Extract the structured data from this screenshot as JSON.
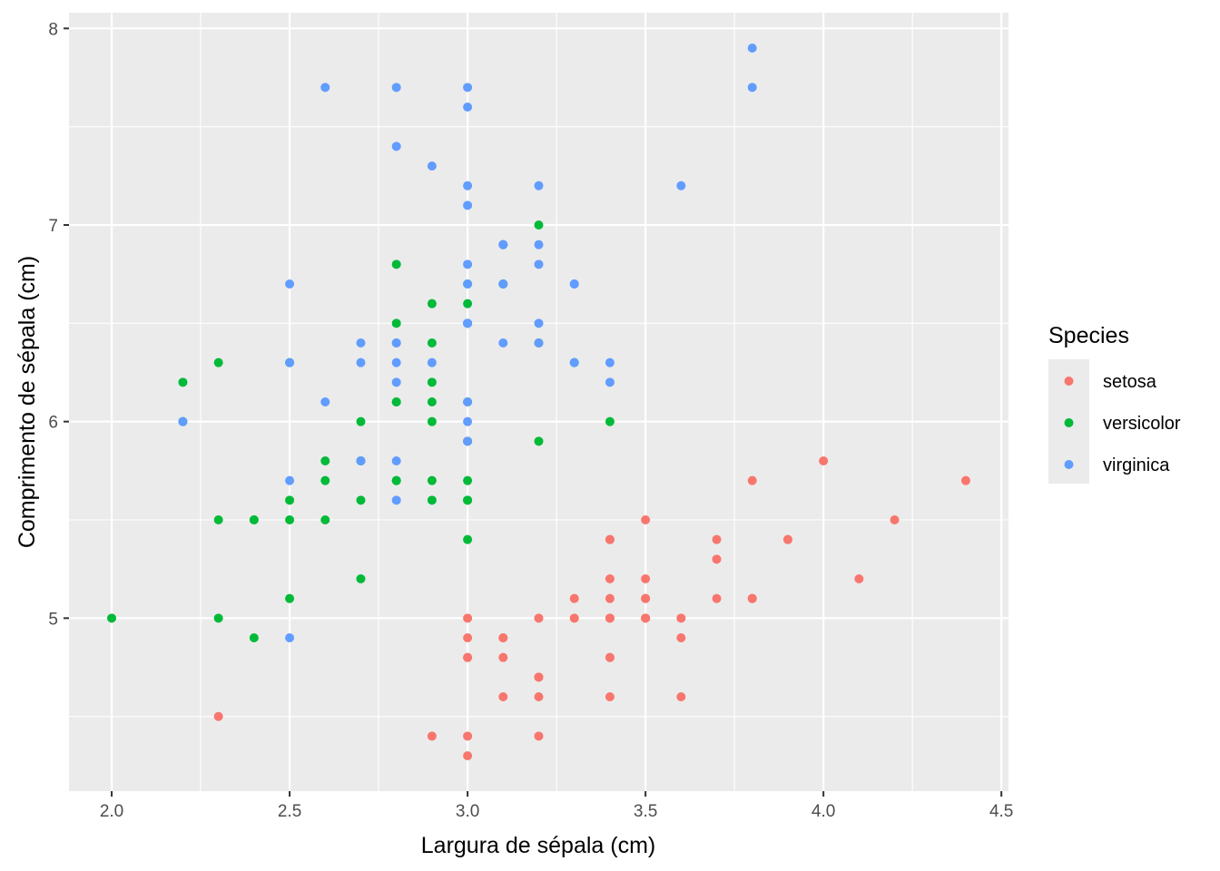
{
  "chart_data": {
    "type": "scatter",
    "xlabel": "Largura de sépala (cm)",
    "ylabel": "Comprimento de sépala (cm)",
    "xlim": [
      1.88,
      4.52
    ],
    "ylim": [
      4.12,
      8.08
    ],
    "x_ticks": [
      2.0,
      2.5,
      3.0,
      3.5,
      4.0,
      4.5
    ],
    "x_tick_labels": [
      "2.0",
      "2.5",
      "3.0",
      "3.5",
      "4.0",
      "4.5"
    ],
    "y_ticks": [
      5,
      6,
      7,
      8
    ],
    "y_tick_labels": [
      "5",
      "6",
      "7",
      "8"
    ],
    "grid": true,
    "legend": {
      "title": "Species",
      "position": "right"
    },
    "series": [
      {
        "name": "setosa",
        "color": "#F8766D",
        "points": [
          [
            3.5,
            5.1
          ],
          [
            3.0,
            4.9
          ],
          [
            3.2,
            4.7
          ],
          [
            3.1,
            4.6
          ],
          [
            3.6,
            5.0
          ],
          [
            3.9,
            5.4
          ],
          [
            3.4,
            4.6
          ],
          [
            3.4,
            5.0
          ],
          [
            2.9,
            4.4
          ],
          [
            3.1,
            4.9
          ],
          [
            3.7,
            5.4
          ],
          [
            3.4,
            4.8
          ],
          [
            3.0,
            4.8
          ],
          [
            3.0,
            4.3
          ],
          [
            4.0,
            5.8
          ],
          [
            4.4,
            5.7
          ],
          [
            3.9,
            5.4
          ],
          [
            3.5,
            5.1
          ],
          [
            3.8,
            5.7
          ],
          [
            3.8,
            5.1
          ],
          [
            3.4,
            5.4
          ],
          [
            3.7,
            5.1
          ],
          [
            3.6,
            4.6
          ],
          [
            3.3,
            5.1
          ],
          [
            3.4,
            4.8
          ],
          [
            3.0,
            5.0
          ],
          [
            3.4,
            5.0
          ],
          [
            3.5,
            5.2
          ],
          [
            3.4,
            5.2
          ],
          [
            3.2,
            4.7
          ],
          [
            3.1,
            4.8
          ],
          [
            3.4,
            5.4
          ],
          [
            4.1,
            5.2
          ],
          [
            4.2,
            5.5
          ],
          [
            3.1,
            4.9
          ],
          [
            3.2,
            5.0
          ],
          [
            3.5,
            5.5
          ],
          [
            3.6,
            4.9
          ],
          [
            3.0,
            4.4
          ],
          [
            3.4,
            5.1
          ],
          [
            3.5,
            5.0
          ],
          [
            2.3,
            4.5
          ],
          [
            3.2,
            4.4
          ],
          [
            3.5,
            5.0
          ],
          [
            3.8,
            5.1
          ],
          [
            3.0,
            4.8
          ],
          [
            3.8,
            5.1
          ],
          [
            3.2,
            4.6
          ],
          [
            3.7,
            5.3
          ],
          [
            3.3,
            5.0
          ]
        ]
      },
      {
        "name": "versicolor",
        "color": "#00BA38",
        "points": [
          [
            3.2,
            7.0
          ],
          [
            3.2,
            6.4
          ],
          [
            3.1,
            6.9
          ],
          [
            2.3,
            5.5
          ],
          [
            2.8,
            6.5
          ],
          [
            2.8,
            5.7
          ],
          [
            3.3,
            6.3
          ],
          [
            2.4,
            4.9
          ],
          [
            2.9,
            6.6
          ],
          [
            2.7,
            5.2
          ],
          [
            2.0,
            5.0
          ],
          [
            3.0,
            5.9
          ],
          [
            2.2,
            6.0
          ],
          [
            2.9,
            6.1
          ],
          [
            2.9,
            5.6
          ],
          [
            3.1,
            6.7
          ],
          [
            3.0,
            5.6
          ],
          [
            2.7,
            5.8
          ],
          [
            2.2,
            6.2
          ],
          [
            2.5,
            5.6
          ],
          [
            3.2,
            5.9
          ],
          [
            2.8,
            6.1
          ],
          [
            2.5,
            6.3
          ],
          [
            2.8,
            6.1
          ],
          [
            2.9,
            6.4
          ],
          [
            3.0,
            6.6
          ],
          [
            2.8,
            6.8
          ],
          [
            3.0,
            6.7
          ],
          [
            2.9,
            6.0
          ],
          [
            2.6,
            5.7
          ],
          [
            2.4,
            5.5
          ],
          [
            2.4,
            5.5
          ],
          [
            2.7,
            5.8
          ],
          [
            2.7,
            6.0
          ],
          [
            3.0,
            5.4
          ],
          [
            3.4,
            6.0
          ],
          [
            3.1,
            6.7
          ],
          [
            2.3,
            6.3
          ],
          [
            3.0,
            5.6
          ],
          [
            2.5,
            5.5
          ],
          [
            2.6,
            5.5
          ],
          [
            3.0,
            6.1
          ],
          [
            2.6,
            5.8
          ],
          [
            2.3,
            5.0
          ],
          [
            2.7,
            5.6
          ],
          [
            3.0,
            5.7
          ],
          [
            2.9,
            5.7
          ],
          [
            2.9,
            6.2
          ],
          [
            2.5,
            5.1
          ],
          [
            2.8,
            5.7
          ]
        ]
      },
      {
        "name": "virginica",
        "color": "#619CFF",
        "points": [
          [
            3.3,
            6.3
          ],
          [
            2.7,
            5.8
          ],
          [
            3.0,
            7.1
          ],
          [
            2.9,
            6.3
          ],
          [
            3.0,
            6.5
          ],
          [
            3.0,
            7.6
          ],
          [
            2.5,
            4.9
          ],
          [
            2.9,
            7.3
          ],
          [
            2.5,
            6.7
          ],
          [
            3.6,
            7.2
          ],
          [
            3.2,
            6.5
          ],
          [
            2.7,
            6.4
          ],
          [
            3.0,
            6.8
          ],
          [
            2.5,
            5.7
          ],
          [
            2.8,
            5.8
          ],
          [
            3.2,
            6.4
          ],
          [
            3.0,
            6.5
          ],
          [
            3.8,
            7.7
          ],
          [
            2.6,
            7.7
          ],
          [
            2.2,
            6.0
          ],
          [
            3.2,
            6.9
          ],
          [
            2.8,
            5.6
          ],
          [
            2.8,
            7.7
          ],
          [
            2.7,
            6.3
          ],
          [
            3.3,
            6.7
          ],
          [
            3.2,
            7.2
          ],
          [
            2.8,
            6.2
          ],
          [
            3.0,
            6.1
          ],
          [
            2.8,
            6.4
          ],
          [
            3.0,
            7.2
          ],
          [
            2.8,
            7.4
          ],
          [
            3.8,
            7.9
          ],
          [
            2.8,
            6.4
          ],
          [
            2.8,
            6.3
          ],
          [
            2.6,
            6.1
          ],
          [
            3.0,
            7.7
          ],
          [
            3.4,
            6.3
          ],
          [
            3.1,
            6.4
          ],
          [
            3.0,
            6.0
          ],
          [
            3.1,
            6.9
          ],
          [
            3.1,
            6.7
          ],
          [
            3.1,
            6.9
          ],
          [
            2.7,
            5.8
          ],
          [
            3.2,
            6.8
          ],
          [
            3.3,
            6.7
          ],
          [
            3.0,
            6.7
          ],
          [
            2.5,
            6.3
          ],
          [
            3.0,
            6.5
          ],
          [
            3.4,
            6.2
          ],
          [
            3.0,
            5.9
          ]
        ]
      }
    ]
  }
}
